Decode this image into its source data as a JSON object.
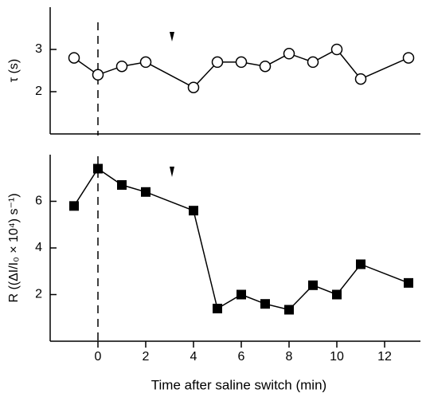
{
  "chart_data": [
    {
      "type": "line",
      "ylabel": "τ (s)",
      "x": [
        -1,
        0,
        1,
        2,
        4,
        5,
        6,
        7,
        8,
        9,
        10,
        11,
        13
      ],
      "series": [
        {
          "color": "#000000",
          "marker": "open-circle",
          "values": [
            2.8,
            2.4,
            2.6,
            2.7,
            2.1,
            2.7,
            2.7,
            2.6,
            2.9,
            2.7,
            3.0,
            2.3,
            2.8
          ]
        }
      ],
      "xlim": [
        -2,
        13.5
      ],
      "ylim": [
        1,
        4
      ],
      "yticks": [
        2,
        3
      ]
    },
    {
      "type": "line",
      "ylabel": "R ((ΔI/I₀ × 10⁴) s⁻¹)",
      "xlabel": "Time after saline switch (min)",
      "x": [
        -1,
        0,
        1,
        2,
        4,
        5,
        6,
        7,
        8,
        9,
        10,
        11,
        13
      ],
      "series": [
        {
          "color": "#000000",
          "marker": "filled-square",
          "values": [
            5.8,
            7.4,
            6.7,
            6.4,
            5.6,
            1.4,
            2.0,
            1.6,
            1.35,
            2.4,
            2.0,
            3.3,
            2.5
          ]
        }
      ],
      "xlim": [
        -2,
        13.5
      ],
      "ylim": [
        0,
        8
      ],
      "yticks": [
        2,
        4,
        6
      ],
      "xticks": [
        0,
        2,
        4,
        6,
        8,
        10,
        12
      ]
    }
  ]
}
